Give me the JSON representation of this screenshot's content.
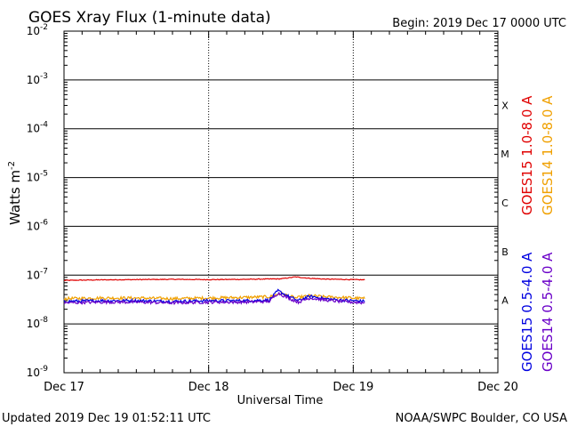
{
  "chart_data": {
    "type": "line",
    "title": "GOES Xray Flux (1-minute data)",
    "begin_label": "Begin:  2019 Dec 17 0000 UTC",
    "xlabel": "Universal Time",
    "ylabel_main": "Watts m",
    "ylabel_exp": "-2",
    "x_ticks": [
      {
        "day": 0,
        "label": "Dec 17"
      },
      {
        "day": 1,
        "label": "Dec 18"
      },
      {
        "day": 2,
        "label": "Dec 19"
      },
      {
        "day": 3,
        "label": "Dec 20"
      }
    ],
    "xlim_days": [
      0,
      3
    ],
    "ylim_log10": [
      -9,
      -2
    ],
    "y_ticks": [
      {
        "exp": -2,
        "base": "10",
        "sup": "-2"
      },
      {
        "exp": -3,
        "base": "10",
        "sup": "-3"
      },
      {
        "exp": -4,
        "base": "10",
        "sup": "-4"
      },
      {
        "exp": -5,
        "base": "10",
        "sup": "-5"
      },
      {
        "exp": -6,
        "base": "10",
        "sup": "-6"
      },
      {
        "exp": -7,
        "base": "10",
        "sup": "-7"
      },
      {
        "exp": -8,
        "base": "10",
        "sup": "-8"
      },
      {
        "exp": -9,
        "base": "10",
        "sup": "-9"
      }
    ],
    "flare_classes": [
      {
        "label": "X",
        "exp": -4
      },
      {
        "label": "M",
        "exp": -5
      },
      {
        "label": "C",
        "exp": -6
      },
      {
        "label": "B",
        "exp": -7
      },
      {
        "label": "A",
        "exp": -8
      }
    ],
    "series": [
      {
        "name": "GOES15 1.0-8.0 A",
        "color": "#e00000",
        "x_days": [
          0.0,
          0.25,
          0.5,
          0.75,
          1.0,
          1.25,
          1.5,
          1.6,
          1.7,
          1.8,
          1.9,
          2.0,
          2.08
        ],
        "values": [
          7.8e-08,
          8e-08,
          8.1e-08,
          8.2e-08,
          8.1e-08,
          8.2e-08,
          8.4e-08,
          9.2e-08,
          8.6e-08,
          8.3e-08,
          8.2e-08,
          8.1e-08,
          8e-08
        ]
      },
      {
        "name": "GOES14 1.0-8.0 A",
        "color": "#f0a000",
        "x_days": [
          0.0,
          0.25,
          0.5,
          0.75,
          1.0,
          1.25,
          1.42,
          1.5,
          1.55,
          1.6,
          1.7,
          1.8,
          1.9,
          2.0,
          2.08
        ],
        "values": [
          3.3e-08,
          3.4e-08,
          3.4e-08,
          3.3e-08,
          3.4e-08,
          3.5e-08,
          3.6e-08,
          4.2e-08,
          3.8e-08,
          3.4e-08,
          3.8e-08,
          3.6e-08,
          3.5e-08,
          3.4e-08,
          3.3e-08
        ]
      },
      {
        "name": "GOES15 0.5-4.0 A",
        "color": "#0000e0",
        "x_days": [
          0.0,
          0.25,
          0.5,
          0.75,
          1.0,
          1.25,
          1.42,
          1.48,
          1.55,
          1.62,
          1.7,
          1.8,
          1.9,
          2.0,
          2.08
        ],
        "values": [
          2.9e-08,
          3e-08,
          3e-08,
          2.9e-08,
          3e-08,
          3e-08,
          3.1e-08,
          4.8e-08,
          3.7e-08,
          3e-08,
          3.7e-08,
          3.3e-08,
          3.1e-08,
          3e-08,
          2.9e-08
        ]
      },
      {
        "name": "GOES14 0.5-4.0 A",
        "color": "#6a00c8",
        "x_days": [
          0.0,
          0.25,
          0.5,
          0.75,
          1.0,
          1.25,
          1.42,
          1.48,
          1.55,
          1.62,
          1.7,
          1.8,
          1.9,
          2.0,
          2.08
        ],
        "values": [
          2.7e-08,
          2.8e-08,
          2.8e-08,
          2.7e-08,
          2.8e-08,
          2.8e-08,
          2.9e-08,
          4.3e-08,
          3.4e-08,
          2.8e-08,
          3.4e-08,
          3.1e-08,
          2.9e-08,
          2.8e-08,
          2.7e-08
        ]
      }
    ],
    "legend_placement": "right"
  },
  "footer": {
    "updated": "Updated 2019 Dec 19 01:52:11 UTC",
    "credit": "NOAA/SWPC Boulder, CO USA"
  }
}
